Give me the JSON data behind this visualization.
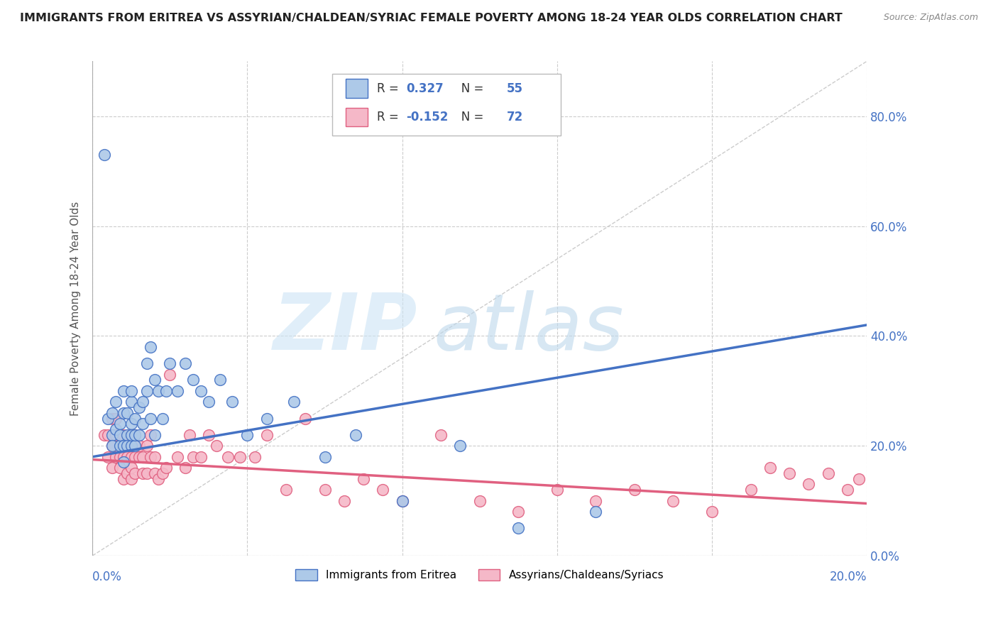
{
  "title": "IMMIGRANTS FROM ERITREA VS ASSYRIAN/CHALDEAN/SYRIAC FEMALE POVERTY AMONG 18-24 YEAR OLDS CORRELATION CHART",
  "source": "Source: ZipAtlas.com",
  "ylabel": "Female Poverty Among 18-24 Year Olds",
  "xlim": [
    0.0,
    0.2
  ],
  "ylim": [
    0.0,
    0.9
  ],
  "yticks": [
    0.0,
    0.2,
    0.4,
    0.6,
    0.8
  ],
  "xticks": [
    0.0,
    0.04,
    0.08,
    0.12,
    0.16,
    0.2
  ],
  "series1_name": "Immigrants from Eritrea",
  "series1_color": "#adc9e8",
  "series1_R": 0.327,
  "series1_N": 55,
  "series1_line_color": "#4472c4",
  "series2_name": "Assyrians/Chaldeans/Syriacs",
  "series2_color": "#f5b8c8",
  "series2_R": -0.152,
  "series2_N": 72,
  "series2_line_color": "#e06080",
  "blue_color": "#4472c4",
  "background_color": "#ffffff",
  "grid_color": "#cccccc",
  "title_color": "#222222",
  "series1_x": [
    0.003,
    0.004,
    0.005,
    0.005,
    0.005,
    0.006,
    0.006,
    0.007,
    0.007,
    0.007,
    0.008,
    0.008,
    0.008,
    0.008,
    0.009,
    0.009,
    0.009,
    0.01,
    0.01,
    0.01,
    0.01,
    0.01,
    0.011,
    0.011,
    0.011,
    0.012,
    0.012,
    0.013,
    0.013,
    0.014,
    0.014,
    0.015,
    0.015,
    0.016,
    0.016,
    0.017,
    0.018,
    0.019,
    0.02,
    0.022,
    0.024,
    0.026,
    0.028,
    0.03,
    0.033,
    0.036,
    0.04,
    0.045,
    0.052,
    0.06,
    0.068,
    0.08,
    0.095,
    0.11,
    0.13
  ],
  "series1_y": [
    0.73,
    0.25,
    0.22,
    0.26,
    0.2,
    0.23,
    0.28,
    0.24,
    0.2,
    0.22,
    0.3,
    0.26,
    0.2,
    0.17,
    0.22,
    0.26,
    0.2,
    0.24,
    0.2,
    0.28,
    0.22,
    0.3,
    0.25,
    0.2,
    0.22,
    0.27,
    0.22,
    0.28,
    0.24,
    0.35,
    0.3,
    0.38,
    0.25,
    0.32,
    0.22,
    0.3,
    0.25,
    0.3,
    0.35,
    0.3,
    0.35,
    0.32,
    0.3,
    0.28,
    0.32,
    0.28,
    0.22,
    0.25,
    0.28,
    0.18,
    0.22,
    0.1,
    0.2,
    0.05,
    0.08
  ],
  "series2_x": [
    0.003,
    0.004,
    0.004,
    0.005,
    0.005,
    0.005,
    0.006,
    0.006,
    0.006,
    0.007,
    0.007,
    0.007,
    0.008,
    0.008,
    0.008,
    0.009,
    0.009,
    0.009,
    0.01,
    0.01,
    0.01,
    0.01,
    0.011,
    0.011,
    0.011,
    0.012,
    0.012,
    0.013,
    0.013,
    0.014,
    0.014,
    0.015,
    0.015,
    0.016,
    0.016,
    0.017,
    0.018,
    0.019,
    0.02,
    0.022,
    0.024,
    0.025,
    0.026,
    0.028,
    0.03,
    0.032,
    0.035,
    0.038,
    0.042,
    0.045,
    0.05,
    0.055,
    0.06,
    0.065,
    0.07,
    0.075,
    0.08,
    0.09,
    0.1,
    0.11,
    0.12,
    0.13,
    0.14,
    0.15,
    0.16,
    0.17,
    0.175,
    0.18,
    0.185,
    0.19,
    0.195,
    0.198
  ],
  "series2_y": [
    0.22,
    0.18,
    0.22,
    0.16,
    0.2,
    0.25,
    0.18,
    0.22,
    0.25,
    0.16,
    0.18,
    0.22,
    0.14,
    0.18,
    0.22,
    0.15,
    0.18,
    0.2,
    0.14,
    0.18,
    0.22,
    0.16,
    0.15,
    0.18,
    0.22,
    0.18,
    0.2,
    0.15,
    0.18,
    0.15,
    0.2,
    0.18,
    0.22,
    0.15,
    0.18,
    0.14,
    0.15,
    0.16,
    0.33,
    0.18,
    0.16,
    0.22,
    0.18,
    0.18,
    0.22,
    0.2,
    0.18,
    0.18,
    0.18,
    0.22,
    0.12,
    0.25,
    0.12,
    0.1,
    0.14,
    0.12,
    0.1,
    0.22,
    0.1,
    0.08,
    0.12,
    0.1,
    0.12,
    0.1,
    0.08,
    0.12,
    0.16,
    0.15,
    0.13,
    0.15,
    0.12,
    0.14
  ]
}
